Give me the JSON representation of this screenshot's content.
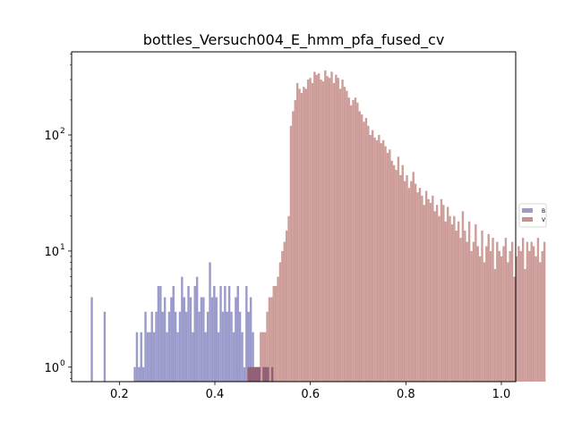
{
  "chart_data": {
    "type": "histogram",
    "title": "bottles_Versuch004_E_hmm_pfa_fused_cv",
    "xlabel": "",
    "ylabel": "",
    "yscale": "log",
    "xlim": [
      0.1,
      1.03
    ],
    "ylim": [
      0.75,
      520
    ],
    "bin_width": 0.0045,
    "x_ticks": [
      {
        "value": 0.2,
        "label": "0.2"
      },
      {
        "value": 0.4,
        "label": "0.4"
      },
      {
        "value": 0.6,
        "label": "0.6"
      },
      {
        "value": 0.8,
        "label": "0.8"
      },
      {
        "value": 1.0,
        "label": "1.0"
      }
    ],
    "y_ticks": [
      {
        "value": 1,
        "base": "10",
        "exp": "0"
      },
      {
        "value": 10,
        "base": "10",
        "exp": "1"
      },
      {
        "value": 100,
        "base": "10",
        "exp": "2"
      }
    ],
    "legend": {
      "placement": "right-center"
    },
    "series": [
      {
        "name": "B",
        "color": "#9a9acb",
        "x_start": 0.14,
        "values": [
          4,
          0,
          0,
          0,
          0,
          0,
          3,
          0,
          0,
          0,
          0,
          0,
          0,
          0,
          0,
          0,
          0,
          0,
          0,
          0,
          1,
          2,
          1,
          2,
          1,
          3,
          2,
          2,
          3,
          2,
          3,
          5,
          5,
          3,
          4,
          2,
          3,
          4,
          5,
          3,
          2,
          3,
          6,
          4,
          3,
          5,
          4,
          2,
          5,
          6,
          3,
          4,
          4,
          2,
          3,
          8,
          4,
          5,
          4,
          2,
          5,
          3,
          5,
          3,
          5,
          3,
          2,
          4,
          5,
          3,
          2,
          1,
          5,
          3,
          4,
          2,
          1,
          1,
          1,
          0,
          1,
          1,
          1,
          0,
          1
        ]
      },
      {
        "name": "V",
        "color": "#c8928f",
        "x_start": 0.467,
        "values": [
          1,
          1,
          1,
          1,
          1,
          1,
          2,
          2,
          2,
          3,
          4,
          4,
          5,
          5,
          6,
          8,
          10,
          12,
          15,
          20,
          120,
          160,
          200,
          280,
          250,
          230,
          260,
          250,
          300,
          310,
          280,
          350,
          330,
          340,
          300,
          290,
          360,
          320,
          310,
          350,
          280,
          330,
          310,
          250,
          300,
          260,
          240,
          210,
          180,
          200,
          210,
          190,
          160,
          150,
          130,
          140,
          120,
          100,
          110,
          95,
          90,
          100,
          85,
          90,
          80,
          70,
          75,
          60,
          55,
          50,
          65,
          45,
          55,
          40,
          45,
          35,
          40,
          48,
          38,
          32,
          35,
          30,
          25,
          33,
          28,
          26,
          30,
          22,
          25,
          20,
          28,
          25,
          18,
          24,
          20,
          17,
          20,
          15,
          18,
          13,
          22,
          15,
          12,
          18,
          10,
          12,
          17,
          11,
          9,
          15,
          8,
          11,
          14,
          10,
          13,
          7,
          12,
          10,
          9,
          11,
          13,
          8,
          10,
          12,
          6,
          9,
          11,
          10,
          13,
          7,
          12,
          10,
          12,
          11,
          9,
          13,
          8,
          10,
          12
        ]
      }
    ]
  }
}
